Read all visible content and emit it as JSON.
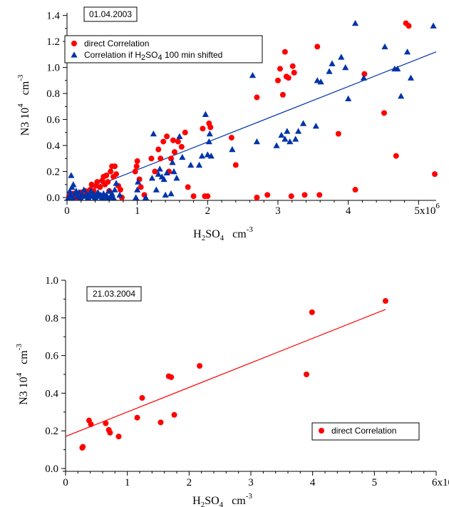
{
  "chart_data": [
    {
      "type": "scatter",
      "date_label": "01.04.2003",
      "xlabel": {
        "base": "H",
        "sub1": "2",
        "mid": "SO",
        "sub2": "4",
        "unit": "cm",
        "unit_sup": "-3"
      },
      "ylabel": {
        "base": "N3 10",
        "sup": "4",
        "unit": "cm",
        "unit_sup": "-3"
      },
      "xlim": [
        0,
        5250000
      ],
      "ylim": [
        0,
        1.42
      ],
      "xticks": [
        {
          "v": 0,
          "label": "0"
        },
        {
          "v": 1000000,
          "label": "1"
        },
        {
          "v": 2000000,
          "label": "2"
        },
        {
          "v": 3000000,
          "label": "3"
        },
        {
          "v": 4000000,
          "label": "4"
        },
        {
          "v": 5000000,
          "label": "5x10",
          "sup": "6"
        }
      ],
      "yticks": [
        {
          "v": 0,
          "label": "0.0"
        },
        {
          "v": 0.2,
          "label": "0.2"
        },
        {
          "v": 0.4,
          "label": "0.4"
        },
        {
          "v": 0.6,
          "label": "0.6"
        },
        {
          "v": 0.8,
          "label": "0.8"
        },
        {
          "v": 1.0,
          "label": "1.0"
        },
        {
          "v": 1.2,
          "label": "1.2"
        },
        {
          "v": 1.4,
          "label": "1.4"
        }
      ],
      "legend_position": "top-left",
      "series": [
        {
          "name": "direct Correlation",
          "legend_parts": [
            "direct Correlation"
          ],
          "marker": "circle",
          "color": "#ff0000",
          "points": [
            [
              30000,
              0.01
            ],
            [
              60000,
              0.02
            ],
            [
              90000,
              0.03
            ],
            [
              120000,
              0.0
            ],
            [
              160000,
              0.02
            ],
            [
              200000,
              0.04
            ],
            [
              230000,
              0.01
            ],
            [
              260000,
              0.05
            ],
            [
              290000,
              0.02
            ],
            [
              310000,
              0.03
            ],
            [
              330000,
              0.06
            ],
            [
              350000,
              0.1
            ],
            [
              380000,
              0.05
            ],
            [
              410000,
              0.09
            ],
            [
              430000,
              0.12
            ],
            [
              450000,
              0.02
            ],
            [
              470000,
              0.08
            ],
            [
              500000,
              0.13
            ],
            [
              520000,
              0.16
            ],
            [
              540000,
              0.1
            ],
            [
              560000,
              0.17
            ],
            [
              580000,
              0.12
            ],
            [
              600000,
              0.05
            ],
            [
              620000,
              0.2
            ],
            [
              640000,
              0.24
            ],
            [
              660000,
              0.16
            ],
            [
              680000,
              0.24
            ],
            [
              700000,
              0.18
            ],
            [
              730000,
              0.09
            ],
            [
              760000,
              0.06
            ],
            [
              780000,
              0.0
            ],
            [
              970000,
              0.2
            ],
            [
              990000,
              0.24
            ],
            [
              1000000,
              0.28
            ],
            [
              1030000,
              0.14
            ],
            [
              1050000,
              0.08
            ],
            [
              1100000,
              0.02
            ],
            [
              1200000,
              0.3
            ],
            [
              1250000,
              0.2
            ],
            [
              1300000,
              0.37
            ],
            [
              1330000,
              0.3
            ],
            [
              1370000,
              0.43
            ],
            [
              1420000,
              0.47
            ],
            [
              1450000,
              0.2
            ],
            [
              1480000,
              0.3
            ],
            [
              1510000,
              0.44
            ],
            [
              1530000,
              0.35
            ],
            [
              1580000,
              0.43
            ],
            [
              1630000,
              0.39
            ],
            [
              1680000,
              0.5
            ],
            [
              1720000,
              0.08
            ],
            [
              1800000,
              0.01
            ],
            [
              1930000,
              0.53
            ],
            [
              1960000,
              0.01
            ],
            [
              2000000,
              0.01
            ],
            [
              2020000,
              0.57
            ],
            [
              2040000,
              0.54
            ],
            [
              2340000,
              0.46
            ],
            [
              2400000,
              0.25
            ],
            [
              2700000,
              0.77
            ],
            [
              2700000,
              0.0
            ],
            [
              2850000,
              0.02
            ],
            [
              3000000,
              0.9
            ],
            [
              3030000,
              0.99
            ],
            [
              3070000,
              0.79
            ],
            [
              3100000,
              1.12
            ],
            [
              3120000,
              0.93
            ],
            [
              3150000,
              0.92
            ],
            [
              3210000,
              1.01
            ],
            [
              3230000,
              0.96
            ],
            [
              3190000,
              0.01
            ],
            [
              3380000,
              0.02
            ],
            [
              3560000,
              1.16
            ],
            [
              3590000,
              0.02
            ],
            [
              3860000,
              0.49
            ],
            [
              4100000,
              0.06
            ],
            [
              4230000,
              0.95
            ],
            [
              4510000,
              0.65
            ],
            [
              4680000,
              0.32
            ],
            [
              4820000,
              1.34
            ],
            [
              4860000,
              1.32
            ],
            [
              5230000,
              0.18
            ]
          ]
        },
        {
          "name": "Correlation if H2SO4 100 min shifted",
          "legend_parts": [
            "Correlation if H",
            "2",
            "SO",
            "4",
            " 100 min shifted"
          ],
          "marker": "triangle",
          "color": "#0033aa",
          "points": [
            [
              20000,
              0.0
            ],
            [
              40000,
              0.05
            ],
            [
              50000,
              0.02
            ],
            [
              60000,
              0.17
            ],
            [
              70000,
              0.08
            ],
            [
              80000,
              0.0
            ],
            [
              90000,
              0.1
            ],
            [
              110000,
              0.03
            ],
            [
              130000,
              0.05
            ],
            [
              150000,
              0.01
            ],
            [
              170000,
              0.04
            ],
            [
              190000,
              0.0
            ],
            [
              220000,
              0.02
            ],
            [
              240000,
              0.06
            ],
            [
              260000,
              0.01
            ],
            [
              280000,
              0.03
            ],
            [
              300000,
              0.0
            ],
            [
              320000,
              0.02
            ],
            [
              340000,
              0.05
            ],
            [
              360000,
              0.01
            ],
            [
              380000,
              0.03
            ],
            [
              400000,
              0.0
            ],
            [
              420000,
              0.02
            ],
            [
              440000,
              0.04
            ],
            [
              460000,
              0.01
            ],
            [
              480000,
              0.02
            ],
            [
              500000,
              0.0
            ],
            [
              520000,
              0.03
            ],
            [
              540000,
              0.01
            ],
            [
              560000,
              0.02
            ],
            [
              580000,
              0.0
            ],
            [
              600000,
              0.05
            ],
            [
              620000,
              0.01
            ],
            [
              640000,
              0.03
            ],
            [
              660000,
              0.0
            ],
            [
              680000,
              0.06
            ],
            [
              700000,
              0.11
            ],
            [
              750000,
              0.02
            ],
            [
              980000,
              0.0
            ],
            [
              1000000,
              0.06
            ],
            [
              1010000,
              0.12
            ],
            [
              1120000,
              0.0
            ],
            [
              1210000,
              0.15
            ],
            [
              1230000,
              0.49
            ],
            [
              1270000,
              0.06
            ],
            [
              1300000,
              0.18
            ],
            [
              1320000,
              0.22
            ],
            [
              1350000,
              0.16
            ],
            [
              1380000,
              0.14
            ],
            [
              1400000,
              0.02
            ],
            [
              1420000,
              0.19
            ],
            [
              1480000,
              0.03
            ],
            [
              1500000,
              0.27
            ],
            [
              1520000,
              0.2
            ],
            [
              1560000,
              0.15
            ],
            [
              1600000,
              0.47
            ],
            [
              1640000,
              0.31
            ],
            [
              1760000,
              0.25
            ],
            [
              1880000,
              0.25
            ],
            [
              1920000,
              0.32
            ],
            [
              1970000,
              0.64
            ],
            [
              2000000,
              0.33
            ],
            [
              2020000,
              0.43
            ],
            [
              2030000,
              0.49
            ],
            [
              2050000,
              0.32
            ],
            [
              2350000,
              0.37
            ],
            [
              2640000,
              0.94
            ],
            [
              2700000,
              0.43
            ],
            [
              2980000,
              0.4
            ],
            [
              3050000,
              0.48
            ],
            [
              3100000,
              0.45
            ],
            [
              3130000,
              0.51
            ],
            [
              3170000,
              0.43
            ],
            [
              3250000,
              0.45
            ],
            [
              3290000,
              0.51
            ],
            [
              3360000,
              0.57
            ],
            [
              3540000,
              0.55
            ],
            [
              3560000,
              0.9
            ],
            [
              3610000,
              0.89
            ],
            [
              3730000,
              0.97
            ],
            [
              3770000,
              1.03
            ],
            [
              3900000,
              1.08
            ],
            [
              3960000,
              1.0
            ],
            [
              4000000,
              0.76
            ],
            [
              4100000,
              1.34
            ],
            [
              4220000,
              0.92
            ],
            [
              4520000,
              1.16
            ],
            [
              4660000,
              0.99
            ],
            [
              4700000,
              0.99
            ],
            [
              4750000,
              0.78
            ],
            [
              4840000,
              1.12
            ],
            [
              4890000,
              0.92
            ],
            [
              5210000,
              1.32
            ]
          ]
        }
      ],
      "fit_line": {
        "color": "#0033aa",
        "x1": 0,
        "y1": 0.0,
        "x2": 5250000,
        "y2": 1.12
      }
    },
    {
      "type": "scatter",
      "date_label": "21.03.2004",
      "xlabel": {
        "base": "H",
        "sub1": "2",
        "mid": "SO",
        "sub2": "4",
        "unit": "cm",
        "unit_sup": "-3"
      },
      "ylabel": {
        "base": "N3 10",
        "sup": "4",
        "unit": "cm",
        "unit_sup": "-3"
      },
      "xlim": [
        0,
        6000000
      ],
      "ylim": [
        0,
        1.0
      ],
      "xticks": [
        {
          "v": 0,
          "label": "0"
        },
        {
          "v": 1000000,
          "label": "1"
        },
        {
          "v": 2000000,
          "label": "2"
        },
        {
          "v": 3000000,
          "label": "3"
        },
        {
          "v": 4000000,
          "label": "4"
        },
        {
          "v": 5000000,
          "label": "5"
        },
        {
          "v": 6000000,
          "label": "6x10",
          "sup": "6"
        }
      ],
      "yticks": [
        {
          "v": 0,
          "label": "0.0"
        },
        {
          "v": 0.2,
          "label": "0.2"
        },
        {
          "v": 0.4,
          "label": "0.4"
        },
        {
          "v": 0.6,
          "label": "0.6"
        },
        {
          "v": 0.8,
          "label": "0.8"
        },
        {
          "v": 1.0,
          "label": "1.0"
        }
      ],
      "legend_position": "bottom-right",
      "series": [
        {
          "name": "direct Correlation",
          "legend_parts": [
            "direct Correlation"
          ],
          "marker": "circle",
          "color": "#ff0000",
          "points": [
            [
              270000,
              0.11
            ],
            [
              280000,
              0.115
            ],
            [
              380000,
              0.255
            ],
            [
              410000,
              0.235
            ],
            [
              650000,
              0.24
            ],
            [
              700000,
              0.205
            ],
            [
              720000,
              0.19
            ],
            [
              860000,
              0.17
            ],
            [
              1160000,
              0.27
            ],
            [
              1240000,
              0.375
            ],
            [
              1540000,
              0.245
            ],
            [
              1670000,
              0.49
            ],
            [
              1710000,
              0.485
            ],
            [
              1760000,
              0.285
            ],
            [
              2170000,
              0.545
            ],
            [
              3900000,
              0.5
            ],
            [
              3990000,
              0.83
            ],
            [
              5180000,
              0.89
            ]
          ]
        }
      ],
      "fit_line": {
        "color": "#ff0000",
        "x1": 0,
        "y1": 0.17,
        "x2": 5180000,
        "y2": 0.845
      }
    }
  ]
}
